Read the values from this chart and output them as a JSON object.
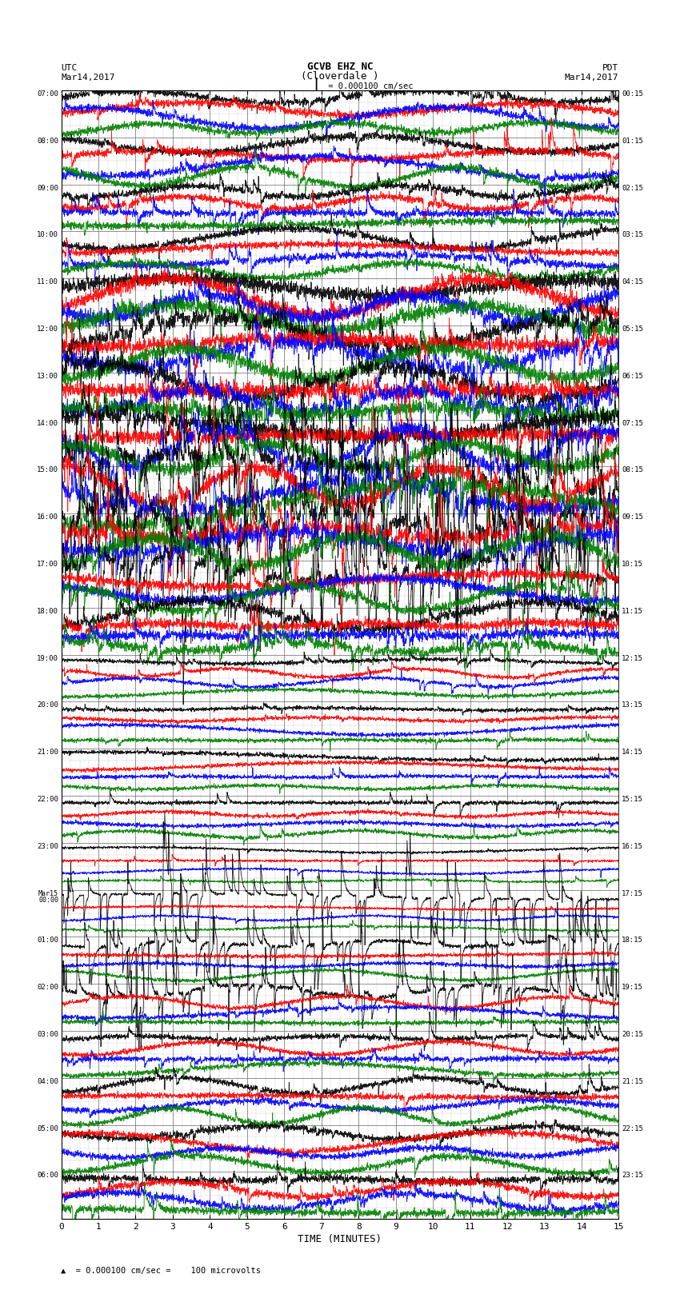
{
  "title_line1": "GCVB EHZ NC",
  "title_line2": "(Cloverdale )",
  "title_line3": "I = 0.000100 cm/sec",
  "left_header_line1": "UTC",
  "left_header_line2": "Mar14,2017",
  "right_header_line1": "PDT",
  "right_header_line2": "Mar14,2017",
  "xlabel": "TIME (MINUTES)",
  "footnote": "= 0.000100 cm/sec =    100 microvolts",
  "xlim": [
    0,
    15
  ],
  "xticks": [
    0,
    1,
    2,
    3,
    4,
    5,
    6,
    7,
    8,
    9,
    10,
    11,
    12,
    13,
    14,
    15
  ],
  "utc_times": [
    "07:00",
    "08:00",
    "09:00",
    "10:00",
    "11:00",
    "12:00",
    "13:00",
    "14:00",
    "15:00",
    "16:00",
    "17:00",
    "18:00",
    "19:00",
    "20:00",
    "21:00",
    "22:00",
    "23:00",
    "Mar15\n00:00",
    "01:00",
    "02:00",
    "03:00",
    "04:00",
    "05:00",
    "06:00"
  ],
  "pdt_times": [
    "00:15",
    "01:15",
    "02:15",
    "03:15",
    "04:15",
    "05:15",
    "06:15",
    "07:15",
    "08:15",
    "09:15",
    "10:15",
    "11:15",
    "12:15",
    "13:15",
    "14:15",
    "15:15",
    "16:15",
    "17:15",
    "18:15",
    "19:15",
    "20:15",
    "21:15",
    "22:15",
    "23:15"
  ],
  "n_rows": 24,
  "bg_color": "#ffffff",
  "grid_color_major": "#666666",
  "grid_color_minor": "#aaaaaa",
  "trace_colors": [
    "black",
    "red",
    "blue",
    "green"
  ],
  "line_width": 0.6,
  "fig_width": 8.5,
  "fig_height": 16.13,
  "dpi": 100
}
